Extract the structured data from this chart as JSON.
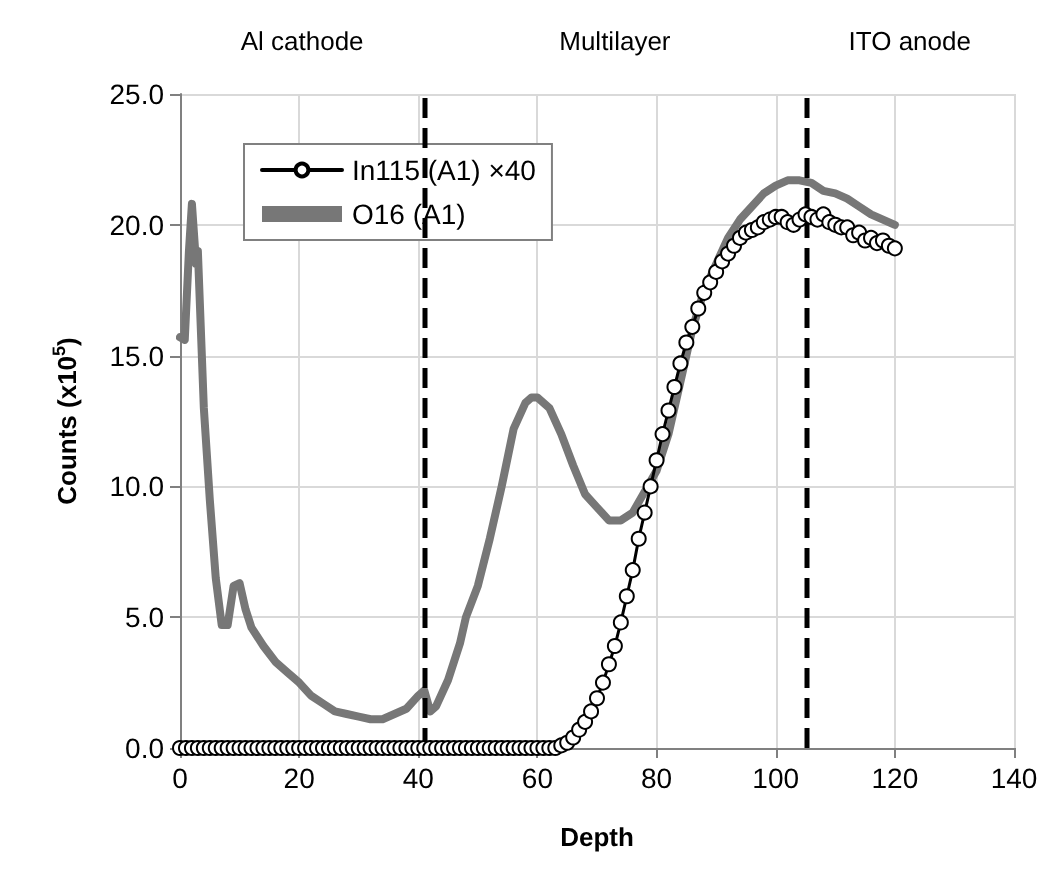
{
  "chart_data": {
    "type": "line",
    "xlabel": "Depth",
    "ylabel": "Counts (x10$^{5}$)",
    "xlim": [
      0,
      140
    ],
    "xticks": [
      0,
      20,
      40,
      60,
      80,
      100,
      120,
      140
    ],
    "ylim": [
      0,
      25
    ],
    "yticks": [
      {
        "value": 0,
        "label": "0.0"
      },
      {
        "value": 5,
        "label": "5.0"
      },
      {
        "value": 10,
        "label": "10.0"
      },
      {
        "value": 15,
        "label": "15.0"
      },
      {
        "value": 20,
        "label": "20.0"
      },
      {
        "value": 25,
        "label": "25.0"
      }
    ],
    "grid": true,
    "legend": "top left",
    "annotations": [
      "Al cathode",
      "Multilayer",
      "ITO anode"
    ],
    "ref_lines": [
      {
        "axis": "x",
        "value": 41,
        "color": "#000000",
        "line_style": "dashed"
      },
      {
        "axis": "x",
        "value": 105,
        "color": "#000000",
        "line_style": "dashed"
      }
    ],
    "series": [
      {
        "name": "In115 (A1) ×40",
        "color": "#000000",
        "marker": "circle",
        "line_style": "solid",
        "x": [
          0,
          1,
          2,
          3,
          4,
          5,
          6,
          7,
          8,
          9,
          10,
          11,
          12,
          13,
          14,
          15,
          16,
          17,
          18,
          19,
          20,
          21,
          22,
          23,
          24,
          25,
          26,
          27,
          28,
          29,
          30,
          31,
          32,
          33,
          34,
          35,
          36,
          37,
          38,
          39,
          40,
          41,
          42,
          43,
          44,
          45,
          46,
          47,
          48,
          49,
          50,
          51,
          52,
          53,
          54,
          55,
          56,
          57,
          58,
          59,
          60,
          61,
          62,
          63,
          64,
          65,
          66,
          67,
          68,
          69,
          70,
          71,
          72,
          73,
          74,
          75,
          76,
          77,
          78,
          79,
          80,
          81,
          82,
          83,
          84,
          85,
          86,
          87,
          88,
          89,
          90,
          91,
          92,
          93,
          94,
          95,
          96,
          97,
          98,
          99,
          100,
          101,
          102,
          103,
          104,
          105,
          106,
          107,
          108,
          109,
          110,
          111,
          112,
          113,
          114,
          115,
          116,
          117,
          118,
          119,
          120
        ],
        "values": [
          0,
          0,
          0,
          0,
          0,
          0,
          0,
          0,
          0,
          0,
          0,
          0,
          0,
          0,
          0,
          0,
          0,
          0,
          0,
          0,
          0,
          0,
          0,
          0,
          0,
          0,
          0,
          0,
          0,
          0,
          0,
          0,
          0,
          0,
          0,
          0,
          0,
          0,
          0,
          0,
          0,
          0,
          0,
          0,
          0,
          0,
          0,
          0,
          0,
          0,
          0,
          0,
          0,
          0,
          0,
          0,
          0,
          0,
          0,
          0,
          0,
          0,
          0,
          0,
          0.1,
          0.2,
          0.4,
          0.7,
          1.0,
          1.4,
          1.9,
          2.5,
          3.2,
          3.9,
          4.8,
          5.8,
          6.8,
          8.0,
          9.0,
          10.0,
          11.0,
          12.0,
          12.9,
          13.8,
          14.7,
          15.5,
          16.1,
          16.8,
          17.4,
          17.8,
          18.2,
          18.6,
          18.9,
          19.2,
          19.5,
          19.7,
          19.8,
          19.9,
          20.1,
          20.2,
          20.3,
          20.3,
          20.1,
          20.0,
          20.2,
          20.4,
          20.3,
          20.2,
          20.4,
          20.1,
          20.0,
          19.9,
          19.9,
          19.6,
          19.7,
          19.4,
          19.5,
          19.3,
          19.4,
          19.2,
          19.1
        ]
      },
      {
        "name": "O16 (A1)",
        "color": "#777777",
        "marker": "none",
        "line_style": "solid",
        "x": [
          0,
          0.8,
          1.5,
          2,
          2.7,
          3,
          4,
          5,
          6,
          7,
          8,
          9,
          10,
          11,
          12,
          14,
          16,
          18,
          20,
          22,
          24,
          26,
          28,
          30,
          32,
          34,
          36,
          38,
          40,
          41,
          42,
          43,
          45,
          47,
          48,
          50,
          52,
          54,
          56,
          58,
          59,
          60,
          62,
          64,
          66,
          68,
          70,
          72,
          74,
          76,
          78,
          80,
          82,
          84,
          86,
          88,
          90,
          92,
          94,
          96,
          98,
          100,
          102,
          104,
          106,
          108,
          110,
          112,
          114,
          116,
          118,
          120
        ],
        "values": [
          15.7,
          15.6,
          19,
          20.8,
          18.5,
          19,
          13,
          9.5,
          6.5,
          4.7,
          4.7,
          6.2,
          6.3,
          5.3,
          4.6,
          3.9,
          3.3,
          2.9,
          2.5,
          2.0,
          1.7,
          1.4,
          1.3,
          1.2,
          1.1,
          1.1,
          1.3,
          1.5,
          2.0,
          2.2,
          1.4,
          1.6,
          2.6,
          4.0,
          5.0,
          6.2,
          8.0,
          10.0,
          12.2,
          13.2,
          13.4,
          13.4,
          13.0,
          12.0,
          10.8,
          9.7,
          9.2,
          8.7,
          8.7,
          9.0,
          9.8,
          10.6,
          12.0,
          14.0,
          16.0,
          17.5,
          18.5,
          19.5,
          20.2,
          20.7,
          21.2,
          21.5,
          21.7,
          21.7,
          21.6,
          21.3,
          21.2,
          21.0,
          20.7,
          20.4,
          20.2,
          20.0
        ]
      }
    ]
  }
}
